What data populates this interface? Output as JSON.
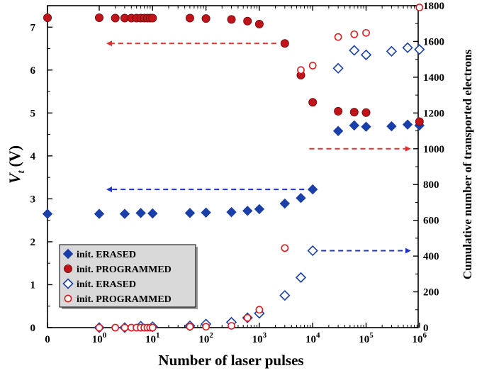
{
  "chart_data": {
    "type": "scatter",
    "xlabel": "Number of laser pulses",
    "ylabel_left": "V_t (V)",
    "ylabel_left_main": "V",
    "ylabel_left_sub": "t",
    "ylabel_left_unit": "(V)",
    "ylabel_right": "Cumulative number of transported electrons",
    "x_scale": "symlog (0 then log10 from 10^0 to 10^6)",
    "x_ticks": [
      {
        "value": 0,
        "base": "0",
        "exp": ""
      },
      {
        "value": 1,
        "base": "10",
        "exp": "0"
      },
      {
        "value": 10,
        "base": "10",
        "exp": "1"
      },
      {
        "value": 100,
        "base": "10",
        "exp": "2"
      },
      {
        "value": 1000,
        "base": "10",
        "exp": "3"
      },
      {
        "value": 10000,
        "base": "10",
        "exp": "4"
      },
      {
        "value": 100000,
        "base": "10",
        "exp": "5"
      },
      {
        "value": 1000000,
        "base": "10",
        "exp": "6"
      }
    ],
    "ylim_left": [
      0,
      7.5
    ],
    "yticks_left": [
      "0",
      "1",
      "2",
      "3",
      "4",
      "5",
      "6",
      "7"
    ],
    "ylim_right": [
      0,
      1800
    ],
    "yticks_right": [
      "0",
      "200",
      "400",
      "600",
      "800",
      "1000",
      "1200",
      "1400",
      "1600",
      "1800"
    ],
    "grid": false,
    "legend_position": "bottom-left",
    "series": [
      {
        "name": "init. ERASED",
        "axis": "left",
        "marker": "diamond-filled",
        "color": "#1a3fa8",
        "points": [
          [
            0,
            2.65
          ],
          [
            1,
            2.65
          ],
          [
            3,
            2.65
          ],
          [
            6,
            2.67
          ],
          [
            10,
            2.66
          ],
          [
            50,
            2.67
          ],
          [
            100,
            2.68
          ],
          [
            300,
            2.69
          ],
          [
            600,
            2.72
          ],
          [
            1000,
            2.76
          ],
          [
            3000,
            2.89
          ],
          [
            6000,
            3.02
          ],
          [
            10000,
            3.22
          ],
          [
            30000,
            4.58
          ],
          [
            60000,
            4.71
          ],
          [
            100000,
            4.68
          ],
          [
            300000,
            4.69
          ],
          [
            600000,
            4.73
          ],
          [
            1000000,
            4.71
          ]
        ]
      },
      {
        "name": "init. PROGRAMMED",
        "axis": "left",
        "marker": "circle-filled",
        "color": "#c0141a",
        "points": [
          [
            0,
            7.22
          ],
          [
            1,
            7.22
          ],
          [
            2,
            7.21
          ],
          [
            3,
            7.21
          ],
          [
            4,
            7.21
          ],
          [
            5,
            7.21
          ],
          [
            6,
            7.21
          ],
          [
            7,
            7.21
          ],
          [
            8,
            7.21
          ],
          [
            9,
            7.21
          ],
          [
            10,
            7.21
          ],
          [
            50,
            7.21
          ],
          [
            100,
            7.2
          ],
          [
            300,
            7.18
          ],
          [
            600,
            7.14
          ],
          [
            1000,
            7.07
          ],
          [
            3000,
            6.62
          ],
          [
            6000,
            5.88
          ],
          [
            10000,
            5.25
          ],
          [
            30000,
            5.04
          ],
          [
            60000,
            5.02
          ],
          [
            100000,
            5.01
          ],
          [
            1000000,
            4.8
          ]
        ]
      },
      {
        "name": "init. ERASED",
        "axis": "right",
        "marker": "diamond-open",
        "color": "#1a3fa8",
        "points": [
          [
            1,
            0
          ],
          [
            3,
            0
          ],
          [
            6,
            8
          ],
          [
            10,
            5
          ],
          [
            50,
            10
          ],
          [
            100,
            20
          ],
          [
            300,
            30
          ],
          [
            600,
            55
          ],
          [
            1000,
            80
          ],
          [
            3000,
            180
          ],
          [
            6000,
            280
          ],
          [
            10000,
            430
          ],
          [
            30000,
            1450
          ],
          [
            60000,
            1550
          ],
          [
            100000,
            1525
          ],
          [
            300000,
            1545
          ],
          [
            600000,
            1565
          ],
          [
            1000000,
            1555
          ]
        ]
      },
      {
        "name": "init. PROGRAMMED",
        "axis": "right",
        "marker": "circle-open",
        "color": "#d81e22",
        "points": [
          [
            1,
            0
          ],
          [
            2,
            0
          ],
          [
            3,
            0
          ],
          [
            4,
            0
          ],
          [
            5,
            0
          ],
          [
            6,
            0
          ],
          [
            7,
            0
          ],
          [
            8,
            0
          ],
          [
            9,
            0
          ],
          [
            10,
            0
          ],
          [
            50,
            5
          ],
          [
            100,
            5
          ],
          [
            300,
            10
          ],
          [
            600,
            55
          ],
          [
            1000,
            100
          ],
          [
            3000,
            445
          ],
          [
            6000,
            1440
          ],
          [
            10000,
            1465
          ],
          [
            30000,
            1625
          ],
          [
            60000,
            1640
          ],
          [
            100000,
            1648
          ],
          [
            1000000,
            1790
          ]
        ]
      }
    ],
    "annotations": [
      {
        "type": "dashed-arrow",
        "color": "#e0302f",
        "direction": "left",
        "from": {
          "x": 3000,
          "y": 6.62,
          "axis": "left"
        },
        "to": {
          "x": 1,
          "y": 6.62,
          "axis": "left"
        }
      },
      {
        "type": "dashed-arrow",
        "color": "#2233cc",
        "direction": "left",
        "from": {
          "x": 10000,
          "y": 3.22,
          "axis": "left"
        },
        "to": {
          "x": 1,
          "y": 3.22,
          "axis": "left"
        }
      },
      {
        "type": "dashed-arrow",
        "color": "#e0302f",
        "direction": "right",
        "from": {
          "x": 6000,
          "y": 1000,
          "axis": "right"
        },
        "to": {
          "x": 1000000,
          "y": 1000,
          "axis": "right"
        }
      },
      {
        "type": "dashed-arrow",
        "color": "#2233cc",
        "direction": "right",
        "from": {
          "x": 10000,
          "y": 430,
          "axis": "right"
        },
        "to": {
          "x": 1000000,
          "y": 430,
          "axis": "right"
        }
      }
    ]
  }
}
